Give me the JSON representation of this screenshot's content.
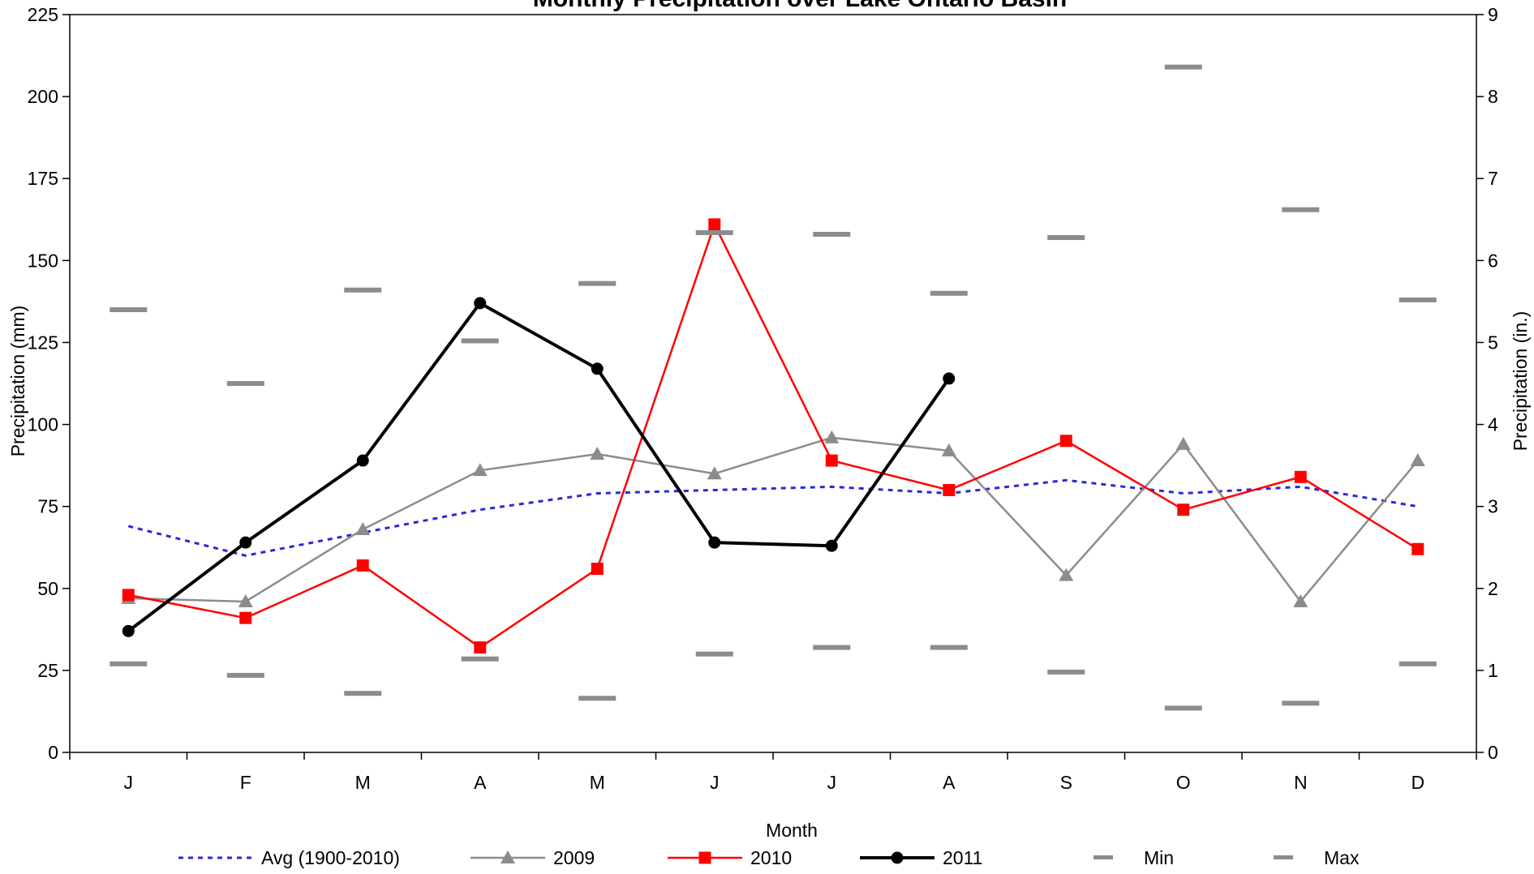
{
  "chart_data": {
    "type": "line",
    "title": "Monthly Precipitation over Lake Ontario Basin",
    "xlabel": "Month",
    "ylabel": "Precipitation (mm)",
    "y2label": "Precipitation (in.)",
    "ylim": [
      0,
      225
    ],
    "y2lim": [
      0,
      9
    ],
    "yticks": [
      "0",
      "25",
      "50",
      "75",
      "100",
      "125",
      "150",
      "175",
      "200",
      "225"
    ],
    "y2ticks": [
      "0",
      "1",
      "2",
      "3",
      "4",
      "5",
      "6",
      "7",
      "8",
      "9"
    ],
    "categories": [
      "J",
      "F",
      "M",
      "A",
      "M",
      "J",
      "J",
      "A",
      "S",
      "O",
      "N",
      "D"
    ],
    "grid": false,
    "legend_position": "bottom",
    "series": [
      {
        "name": "Avg (1900-2010)",
        "style": "dotted",
        "marker": "none",
        "color": "#2a2ad4",
        "values": [
          69,
          60,
          67,
          74,
          79,
          80,
          81,
          79,
          83,
          79,
          81,
          75
        ]
      },
      {
        "name": "2009",
        "style": "solid",
        "marker": "triangle",
        "color": "#8c8c8c",
        "values": [
          47,
          46,
          68,
          86,
          91,
          85,
          96,
          92,
          54,
          94,
          46,
          89
        ]
      },
      {
        "name": "2010",
        "style": "solid",
        "marker": "square",
        "color": "#ff0000",
        "values": [
          48,
          41,
          57,
          32,
          56,
          161,
          89,
          80,
          95,
          74,
          84,
          62
        ]
      },
      {
        "name": "2011",
        "style": "solid-thick",
        "marker": "circle",
        "color": "#000000",
        "values": [
          37,
          64,
          89,
          137,
          117,
          64,
          63,
          114,
          null,
          null,
          null,
          null
        ]
      },
      {
        "name": "Min",
        "style": "dash-marker",
        "marker": "dash",
        "color": "#8c8c8c",
        "values": [
          27,
          23.5,
          18,
          28.5,
          16.5,
          30,
          32,
          32,
          24.5,
          13.5,
          15,
          27
        ]
      },
      {
        "name": "Max",
        "style": "dash-marker",
        "marker": "dash",
        "color": "#8c8c8c",
        "values": [
          135,
          112.5,
          141,
          125.5,
          143,
          158.5,
          158,
          140,
          157,
          209,
          165.5,
          138
        ]
      }
    ]
  }
}
